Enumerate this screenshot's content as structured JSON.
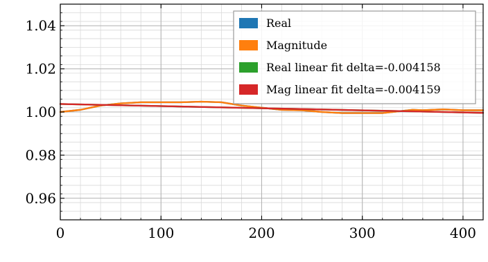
{
  "chart_data": {
    "type": "line",
    "title": "",
    "xlabel": "",
    "ylabel": "",
    "xlim": [
      0,
      420
    ],
    "ylim": [
      0.95,
      1.05
    ],
    "x_major_ticks": [
      0,
      100,
      200,
      300,
      400
    ],
    "x_tick_labels": [
      "0",
      "100",
      "200",
      "300",
      "400"
    ],
    "x_minor_step": 20,
    "y_major_ticks": [
      0.96,
      0.98,
      1.0,
      1.02,
      1.04
    ],
    "y_tick_labels": [
      "0.96",
      "0.98",
      "1.00",
      "1.02",
      "1.04"
    ],
    "y_minor_step": 0.004,
    "grid": true,
    "legend_position": "top-right",
    "series": [
      {
        "name": "Real",
        "color": "#1f77b4",
        "x": [
          0,
          20,
          40,
          60,
          80,
          100,
          120,
          140,
          160,
          180,
          200,
          220,
          240,
          260,
          280,
          300,
          320,
          340,
          350,
          360,
          380,
          400,
          420
        ],
        "y": [
          1.0,
          1.001,
          1.003,
          1.004,
          1.0045,
          1.0045,
          1.0045,
          1.0048,
          1.0045,
          1.003,
          1.002,
          1.001,
          1.0008,
          1.0,
          0.9995,
          0.9995,
          0.9995,
          1.0005,
          1.001,
          1.0008,
          1.0012,
          1.0008,
          1.0008
        ]
      },
      {
        "name": "Magnitude",
        "color": "#ff7f0e",
        "x": [
          0,
          20,
          40,
          60,
          80,
          100,
          120,
          140,
          160,
          180,
          200,
          220,
          240,
          260,
          280,
          300,
          320,
          340,
          350,
          360,
          380,
          400,
          420
        ],
        "y": [
          1.0,
          1.001,
          1.003,
          1.004,
          1.0045,
          1.0045,
          1.0045,
          1.0048,
          1.0045,
          1.003,
          1.002,
          1.001,
          1.0008,
          1.0,
          0.9995,
          0.9995,
          0.9995,
          1.0005,
          1.001,
          1.0008,
          1.0012,
          1.0008,
          1.0008
        ]
      },
      {
        "name": "Real linear fit delta=-0.004158",
        "color": "#2ca02c",
        "x": [
          0,
          420
        ],
        "y": [
          1.0037,
          0.9996
        ]
      },
      {
        "name": "Mag linear fit delta=-0.004159",
        "color": "#d62728",
        "x": [
          0,
          420
        ],
        "y": [
          1.0037,
          0.9996
        ]
      }
    ]
  }
}
